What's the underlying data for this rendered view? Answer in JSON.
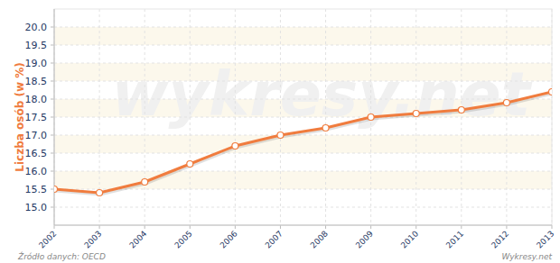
{
  "chart_data": {
    "type": "line",
    "y_label": "Liczba osób (w %)",
    "source": "Źródło danych: OECD",
    "credit": "Wykresy.net",
    "watermark": "wykresy.net",
    "x": [
      2002,
      2003,
      2004,
      2005,
      2006,
      2007,
      2008,
      2009,
      2010,
      2011,
      2012,
      2013
    ],
    "values": [
      15.5,
      15.4,
      15.7,
      16.2,
      16.7,
      17.0,
      17.2,
      17.5,
      17.6,
      17.7,
      17.9,
      18.2
    ],
    "color": "#f07c3e",
    "marker": "circle",
    "xlim": [
      2002,
      2013
    ],
    "xticks": [
      2002,
      2003,
      2004,
      2005,
      2006,
      2007,
      2008,
      2009,
      2010,
      2011,
      2012,
      2013
    ],
    "ylim": [
      14.5,
      20.5
    ],
    "yticks": [
      {
        "value": 15,
        "label": "15.0"
      },
      {
        "value": 15.5,
        "label": "15.5"
      },
      {
        "value": 16,
        "label": "16.0"
      },
      {
        "value": 16.5,
        "label": "16.5"
      },
      {
        "value": 17,
        "label": "17.0"
      },
      {
        "value": 17.5,
        "label": "17.5"
      },
      {
        "value": 18,
        "label": "18.0"
      },
      {
        "value": 18.5,
        "label": "18.5"
      },
      {
        "value": 19,
        "label": "19.0"
      },
      {
        "value": 19.5,
        "label": "19.5"
      },
      {
        "value": 20,
        "label": "20.0"
      }
    ],
    "grid": true
  }
}
